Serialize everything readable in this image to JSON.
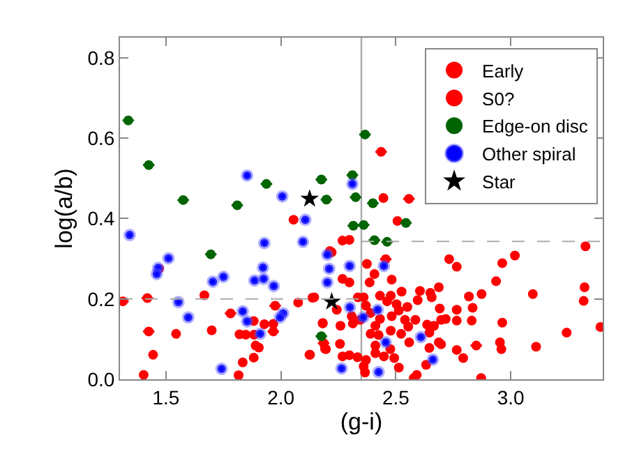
{
  "chart_data": {
    "type": "scatter",
    "xlabel": "(g-i)",
    "ylabel": "log(a/b)",
    "xlim": [
      1.3,
      3.4
    ],
    "ylim": [
      0,
      0.85
    ],
    "xticks": [
      1.5,
      {
        "value": 2,
        "label": "2.0"
      },
      2.5,
      {
        "value": 3,
        "label": "3.0"
      }
    ],
    "yticks": [
      {
        "value": 0,
        "label": "0.0"
      },
      0.2,
      0.4,
      0.6,
      0.8
    ],
    "grid": false,
    "legend": "top right",
    "ref_lines": [
      {
        "axis": "x",
        "value": 2.35,
        "color": "#aaaaaa",
        "line_style": "solid"
      }
    ],
    "series": [
      {
        "name": "Early",
        "color": "#ff0000",
        "marker": "circle",
        "x": [
          2.055,
          2.446,
          2.507,
          1.444,
          1.403,
          1.544,
          1.47,
          1.667,
          1.699,
          1.82,
          1.847,
          1.834,
          1.816,
          1.882,
          1.89,
          1.904,
          1.883,
          1.882,
          1.928,
          1.967,
          2.075,
          2.137,
          2.127,
          2.182,
          2.192,
          2.213,
          2.268,
          2.298,
          2.221,
          2.732,
          2.765,
          3.018,
          2.963,
          3.325,
          2.374,
          2.407,
          2.268,
          2.298,
          2.386,
          2.482,
          2.936,
          3.321,
          3.317,
          3.096,
          2.873,
          2.818,
          2.687,
          2.65,
          2.605,
          2.525,
          2.478,
          2.431,
          2.335,
          2.36,
          2.145,
          2.243,
          2.182,
          2.259,
          2.313,
          2.37,
          2.39,
          2.462,
          2.503,
          2.55,
          2.595,
          2.656,
          2.691,
          2.765,
          2.834,
          2.717,
          2.765,
          2.83,
          2.963,
          2.585,
          2.54,
          2.482,
          2.431,
          2.345,
          2.308,
          2.411,
          2.478,
          2.425,
          2.523,
          2.558,
          2.646,
          2.666,
          2.697,
          2.697,
          2.646,
          2.765,
          2.953,
          2.959,
          3.11,
          3.243,
          3.39,
          2.268,
          2.298,
          2.333,
          2.37,
          2.411,
          2.448,
          2.493,
          2.411,
          2.257,
          2.196,
          2.124,
          2.36,
          2.366,
          2.513,
          2.591,
          2.578,
          2.632,
          2.793,
          2.871,
          2.687,
          2.554,
          2.476,
          2.513,
          2.636,
          2.39
        ],
        "values": [
          0.397,
          0.451,
          0.394,
          0.061,
          0.011,
          0.113,
          0.275,
          0.209,
          0.122,
          0.112,
          0.111,
          0.042,
          0.01,
          0.054,
          0.084,
          0.079,
          0.111,
          0.145,
          0.137,
          0.138,
          0.191,
          0.203,
          0.061,
          0.14,
          0.076,
          0.319,
          0.345,
          0.347,
          0.316,
          0.299,
          0.28,
          0.308,
          0.289,
          0.331,
          0.287,
          0.262,
          0.25,
          0.241,
          0.241,
          0.248,
          0.244,
          0.229,
          0.195,
          0.212,
          0.212,
          0.206,
          0.229,
          0.215,
          0.22,
          0.218,
          0.208,
          0.208,
          0.204,
          0.204,
          0.204,
          0.173,
          0.139,
          0.133,
          0.139,
          0.183,
          0.165,
          0.194,
          0.187,
          0.18,
          0.197,
          0.204,
          0.176,
          0.173,
          0.178,
          0.15,
          0.146,
          0.146,
          0.141,
          0.148,
          0.148,
          0.157,
          0.15,
          0.148,
          0.157,
          0.133,
          0.121,
          0.11,
          0.113,
          0.092,
          0.116,
          0.133,
          0.148,
          0.087,
          0.078,
          0.073,
          0.092,
          0.075,
          0.081,
          0.116,
          0.13,
          0.057,
          0.06,
          0.055,
          0.048,
          0.065,
          0.057,
          0.053,
          0.084,
          0.088,
          0.075,
          0.061,
          0.032,
          0.017,
          0.029,
          0.011,
          0.003,
          0.036,
          0.053,
          0.003,
          0.092,
          0.131,
          0.075,
          0.171,
          0.136,
          0.113
        ]
      },
      {
        "name": "S0?",
        "color": "#ff0000",
        "marker": "circle",
        "x": [
          1.313,
          1.419,
          1.425,
          1.781,
          1.967,
          1.975,
          2.186,
          2.436,
          2.557,
          2.456,
          2.85
        ],
        "values": [
          0.194,
          0.202,
          0.119,
          0.164,
          0.119,
          0.183,
          0.09,
          0.566,
          0.449,
          0.299,
          0.084
        ],
        "xerrors": [
          0.025,
          0.025,
          0.025,
          0.025,
          0.025,
          0.025,
          0.025,
          0.025,
          0.025,
          0.025,
          0.025
        ]
      },
      {
        "name": "Edge-on disc",
        "color": "#006400",
        "marker": "circle",
        "x": [
          1.336,
          1.425,
          1.575,
          1.81,
          1.937,
          2.176,
          2.198,
          2.366,
          2.311,
          2.325,
          2.4,
          1.695,
          2.176,
          2.315,
          2.36,
          2.544,
          2.407,
          2.462
        ],
        "values": [
          0.644,
          0.533,
          0.446,
          0.433,
          0.486,
          0.497,
          0.447,
          0.609,
          0.508,
          0.453,
          0.438,
          0.311,
          0.107,
          0.382,
          0.384,
          0.389,
          0.346,
          0.342
        ],
        "xerrors": [
          0.025,
          0.025,
          0.025,
          0.025,
          0.025,
          0.025,
          0.025,
          0.025,
          0.025,
          0.025,
          0.025,
          0.025,
          0.025,
          0.025,
          0.025,
          0.025,
          0.025,
          0.025
        ]
      },
      {
        "name": "Other spiral",
        "color": "#0000ff",
        "marker": "circle",
        "x": [
          1.853,
          2.006,
          2.106,
          2.311,
          1.342,
          1.511,
          1.466,
          1.46,
          1.704,
          1.75,
          1.554,
          1.597,
          1.742,
          1.928,
          1.922,
          1.885,
          1.925,
          1.969,
          1.834,
          1.853,
          1.91,
          2.01,
          1.996,
          2.096,
          2.202,
          2.21,
          2.202,
          2.299,
          2.448,
          2.3,
          2.358,
          2.421,
          2.456,
          2.609,
          2.661,
          2.264,
          2.425
        ],
        "values": [
          0.507,
          0.455,
          0.397,
          0.486,
          0.359,
          0.301,
          0.277,
          0.262,
          0.243,
          0.255,
          0.192,
          0.154,
          0.026,
          0.339,
          0.278,
          0.246,
          0.25,
          0.232,
          0.169,
          0.144,
          0.113,
          0.164,
          0.154,
          0.342,
          0.31,
          0.275,
          0.241,
          0.282,
          0.282,
          0.179,
          0.154,
          0.173,
          0.092,
          0.105,
          0.049,
          0.027,
          0.018
        ]
      },
      {
        "name": "Star",
        "color": "#000000",
        "marker": "star",
        "x": [
          2.125,
          2.221
        ],
        "values": [
          0.449,
          0.193
        ]
      },
      {
        "type": "line",
        "color": "#aaaaaa",
        "line_style": "dashed",
        "marker": "none",
        "x": [
          1.3,
          2.35
        ],
        "values": [
          0.2,
          0.2
        ]
      },
      {
        "type": "line",
        "color": "#aaaaaa",
        "line_style": "dashed",
        "marker": "none",
        "x": [
          2.35,
          3.4
        ],
        "values": [
          0.343,
          0.343
        ]
      }
    ]
  }
}
